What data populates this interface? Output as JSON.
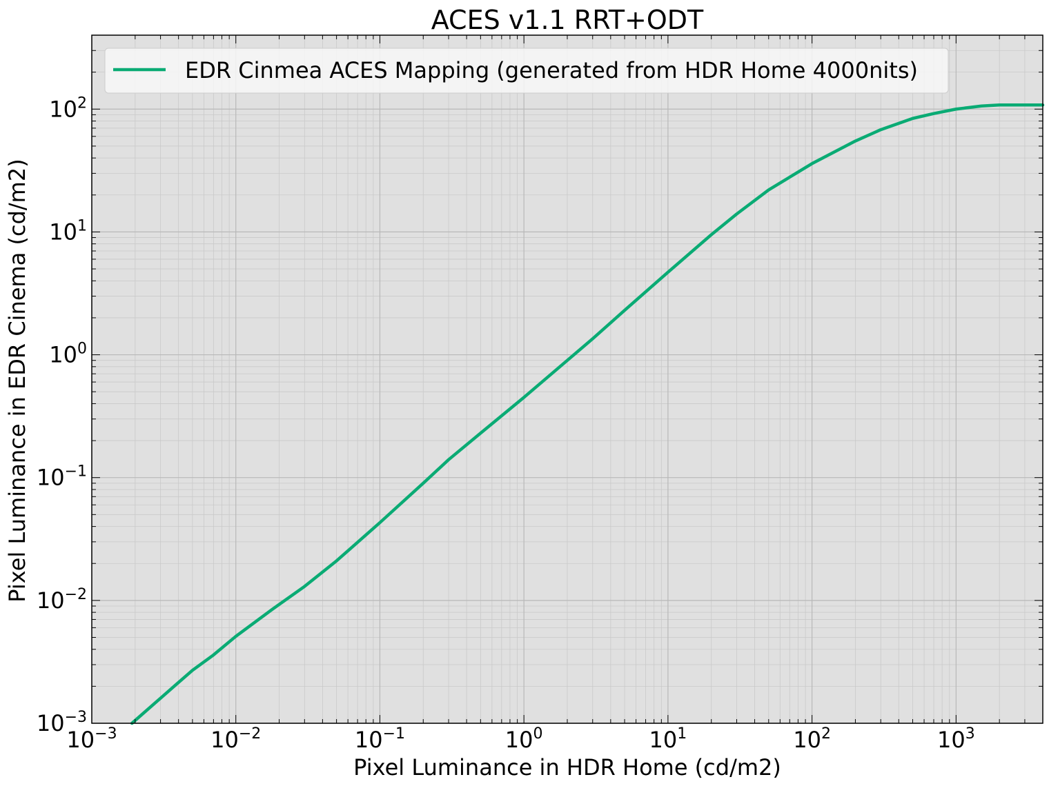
{
  "chart_data": {
    "type": "line",
    "title": "ACES v1.1 RRT+ODT",
    "xlabel": "Pixel Luminance in HDR Home (cd/m2)",
    "ylabel": "Pixel Luminance in EDR Cinema (cd/m2)",
    "xscale": "log",
    "yscale": "log",
    "xlim": [
      0.001,
      4000
    ],
    "ylim": [
      0.001,
      400
    ],
    "xticks": [
      {
        "base": "10",
        "exp": "−3"
      },
      {
        "base": "10",
        "exp": "−2"
      },
      {
        "base": "10",
        "exp": "−1"
      },
      {
        "base": "10",
        "exp": "0"
      },
      {
        "base": "10",
        "exp": "1"
      },
      {
        "base": "10",
        "exp": "2"
      },
      {
        "base": "10",
        "exp": "3"
      }
    ],
    "yticks": [
      {
        "base": "10",
        "exp": "−3"
      },
      {
        "base": "10",
        "exp": "−2"
      },
      {
        "base": "10",
        "exp": "−1"
      },
      {
        "base": "10",
        "exp": "0"
      },
      {
        "base": "10",
        "exp": "1"
      },
      {
        "base": "10",
        "exp": "2"
      }
    ],
    "grid": true,
    "legend_position": "top-left",
    "background_color": "#e0e0e0",
    "series": [
      {
        "name": "EDR Cinmea ACES Mapping (generated from HDR Home 4000nits)",
        "color": "#0aab74",
        "x": [
          0.0019,
          0.003,
          0.005,
          0.007,
          0.01,
          0.018,
          0.03,
          0.05,
          0.1,
          0.2,
          0.3,
          0.5,
          1,
          2,
          3,
          5,
          10,
          20,
          30,
          50,
          100,
          200,
          300,
          500,
          700,
          1000,
          1500,
          2000,
          3000,
          4000
        ],
        "y": [
          0.001,
          0.0016,
          0.0027,
          0.0036,
          0.0051,
          0.0085,
          0.013,
          0.021,
          0.043,
          0.09,
          0.14,
          0.23,
          0.45,
          0.9,
          1.35,
          2.3,
          4.7,
          9.5,
          14,
          22,
          36,
          55,
          68,
          84,
          92,
          100,
          106,
          108,
          108,
          108
        ]
      }
    ]
  }
}
